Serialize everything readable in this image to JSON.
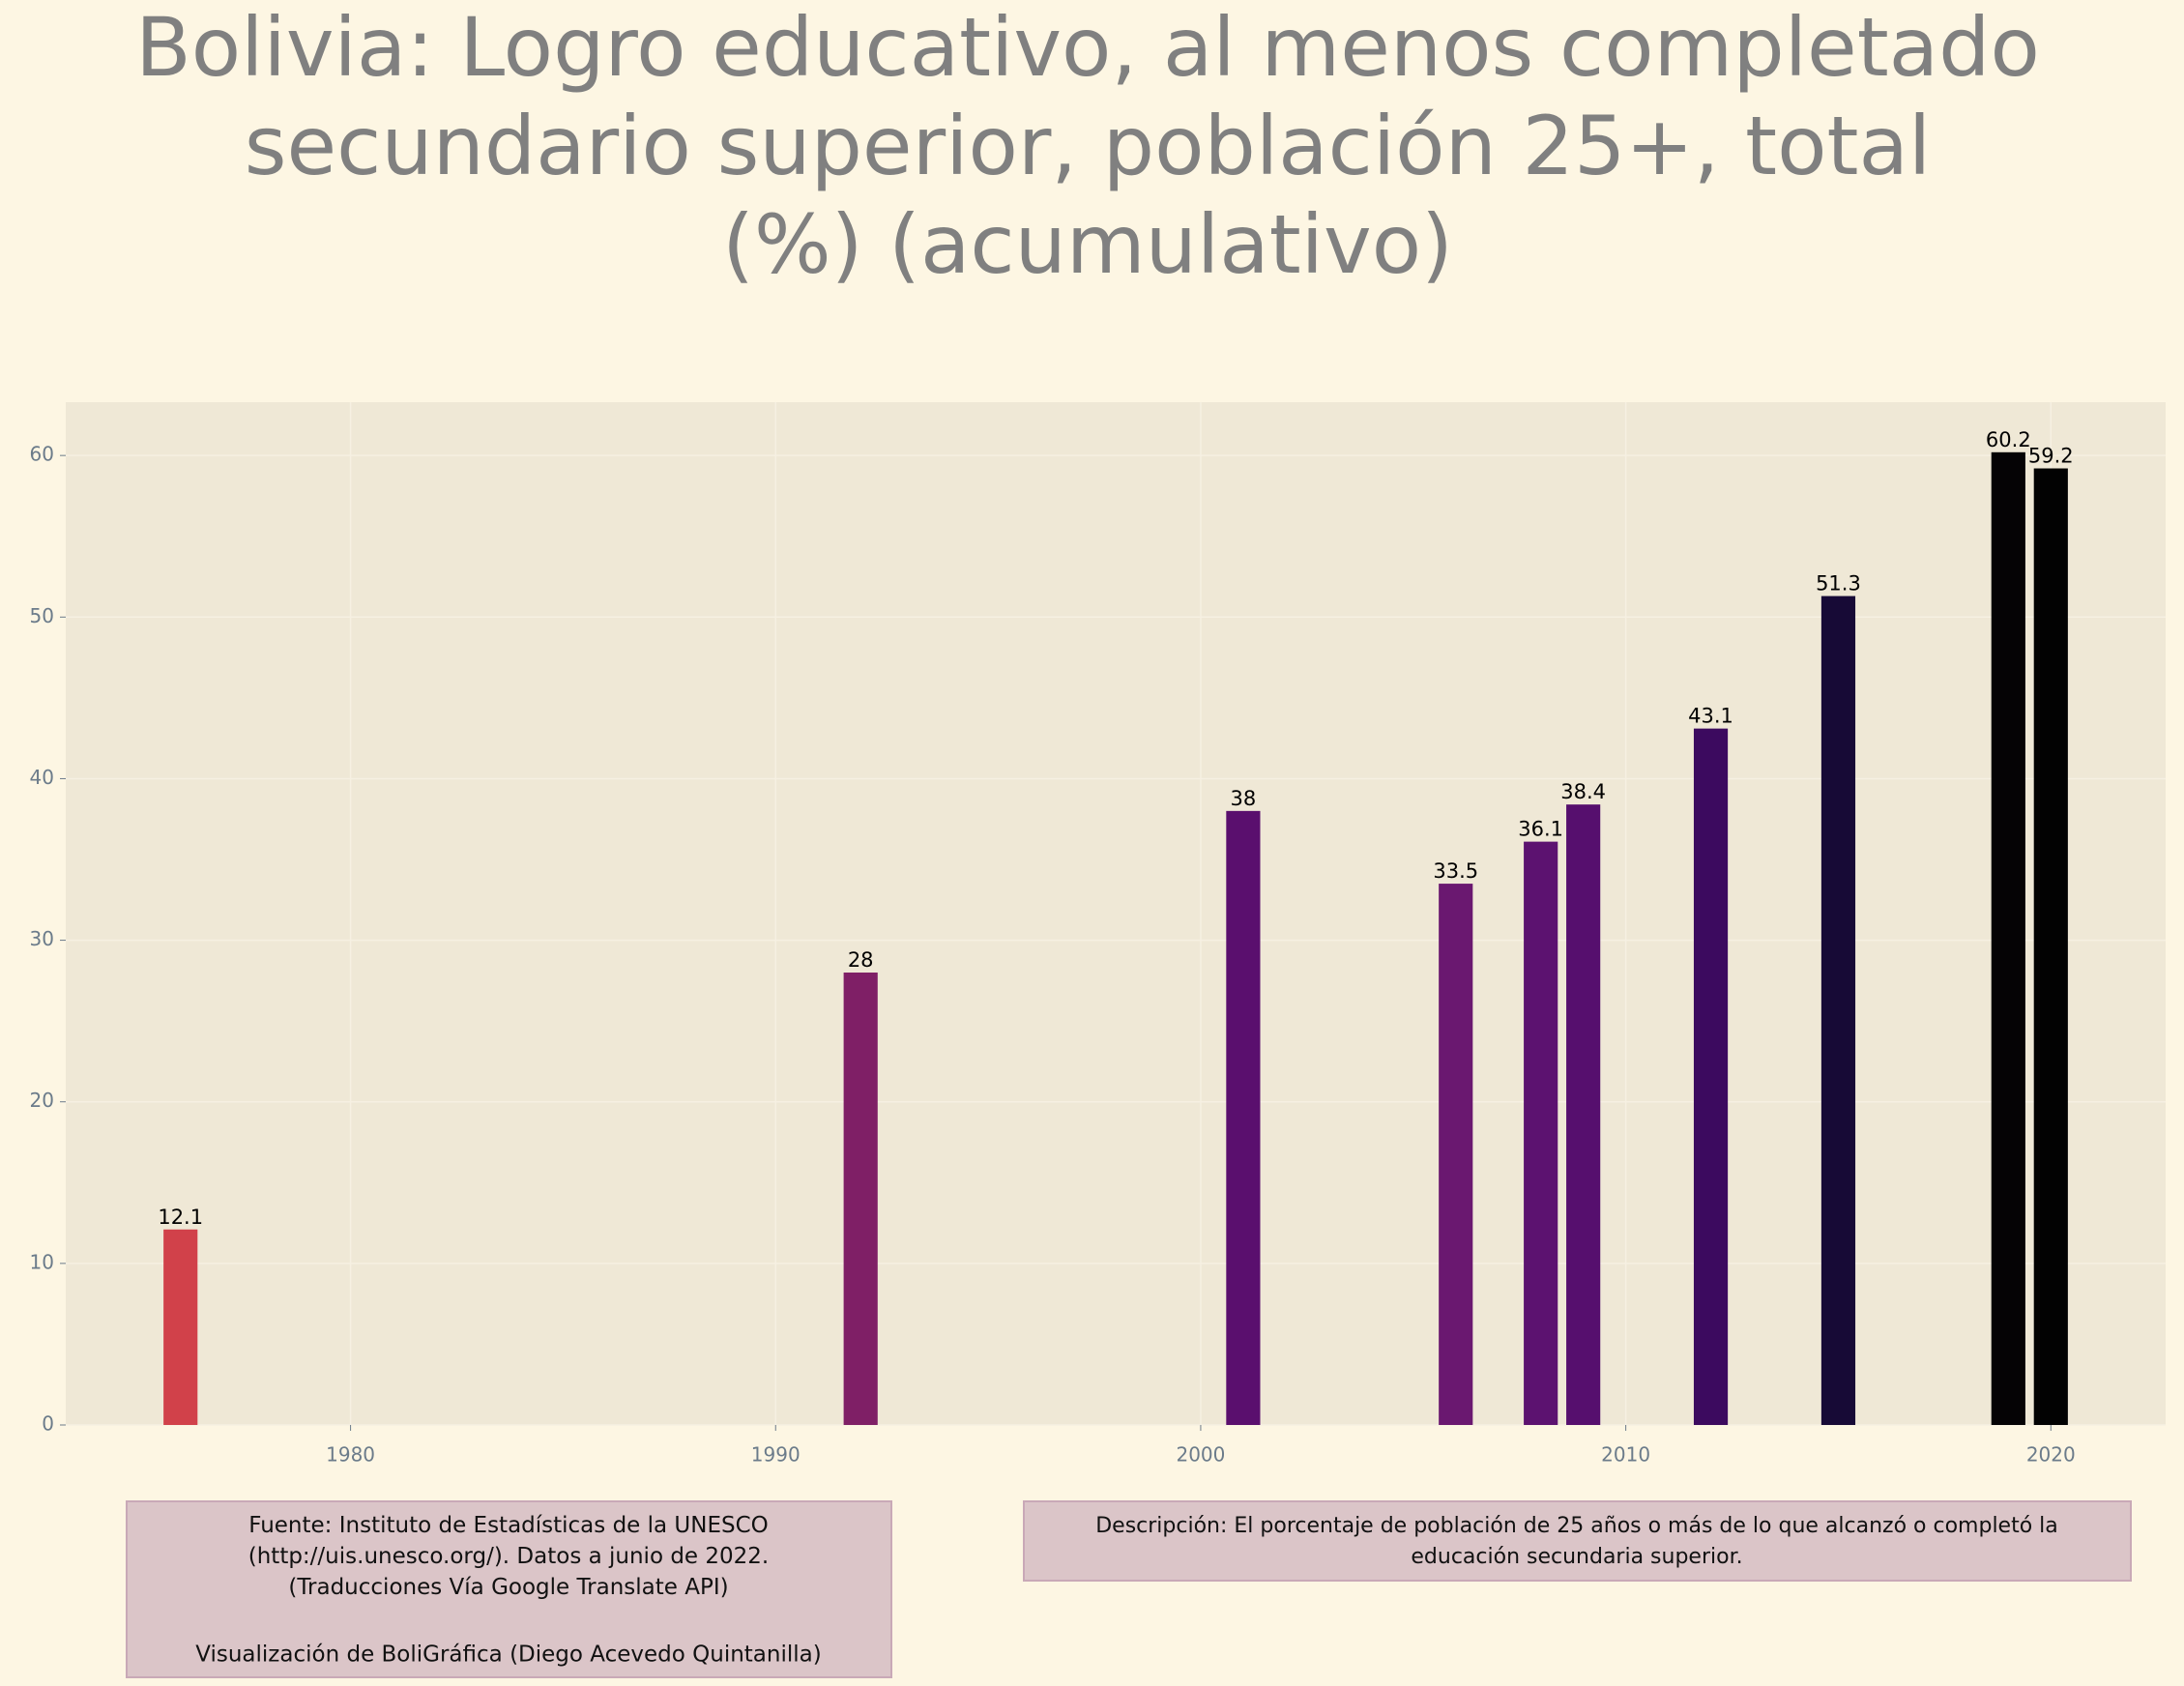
{
  "chart_data": {
    "type": "bar",
    "title": "Bolivia:  Logro educativo, al menos completado\nsecundario superior, población 25+, total\n(%) (acumulativo)",
    "x": [
      1976,
      1992,
      2001,
      2006,
      2008,
      2009,
      2012,
      2015,
      2019,
      2020
    ],
    "values": [
      12.1,
      28,
      38,
      33.5,
      36.1,
      38.4,
      43.1,
      51.3,
      60.2,
      59.2
    ],
    "colors": [
      "#d1414a",
      "#7f1f66",
      "#5a0f6e",
      "#6a1870",
      "#5c1270",
      "#560f6e",
      "#3c0a5f",
      "#170a36",
      "#050305",
      "#020202"
    ],
    "xlim": [
      1973.3,
      2022.7
    ],
    "xticks": [
      1980,
      1990,
      2000,
      2010,
      2020
    ],
    "ylim": [
      0,
      63.3
    ],
    "yticks": [
      0,
      10,
      20,
      30,
      40,
      50,
      60
    ],
    "grid": true,
    "source": "Fuente: Instituto de Estadísticas de la UNESCO\n(http://uis.unesco.org/). Datos a junio de 2022.\n(Traducciones Vía Google Translate API)",
    "credit": "Visualización de BoliGráfica (Diego Acevedo Quintanilla)",
    "description": "Descripción: El porcentaje de población de 25 años o más de lo que alcanzó o completó la\neducación secundaria superior."
  }
}
